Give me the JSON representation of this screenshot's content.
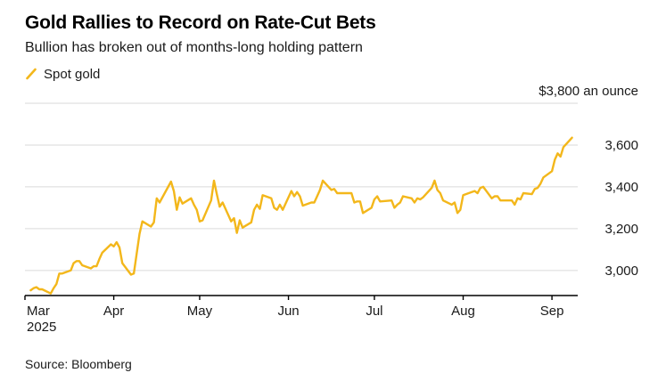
{
  "header": {
    "title": "Gold Rallies to Record on Rate-Cut Bets",
    "subtitle": "Bullion has broken out of months-long holding pattern"
  },
  "legend": {
    "label": "Spot gold",
    "color": "#F3B71B"
  },
  "source": "Source: Bloomberg",
  "chart_data": {
    "type": "line",
    "title": "Gold Rallies to Record on Rate-Cut Bets",
    "subtitle": "Bullion has broken out of months-long holding pattern",
    "unit_label": "$3,800 an ounce",
    "grid_color": "#DADADA",
    "axis_color": "#000000",
    "text_color": "#1A1A1A",
    "legend_position": "top-left",
    "y_axis": {
      "min": 2880,
      "max": 3800,
      "ticks": [
        {
          "value": 3000,
          "label": "3,000"
        },
        {
          "value": 3200,
          "label": "3,200"
        },
        {
          "value": 3400,
          "label": "3,400"
        },
        {
          "value": 3600,
          "label": "3,600"
        },
        {
          "value": 3800,
          "label": "$3,800 an ounce",
          "top": true
        }
      ]
    },
    "x_axis": {
      "start": "2025-03-01",
      "end": "2025-09-10",
      "ticks": [
        {
          "date": "2025-03-01",
          "label": "Mar",
          "sublabel": "2025"
        },
        {
          "date": "2025-04-01",
          "label": "Apr"
        },
        {
          "date": "2025-05-01",
          "label": "May"
        },
        {
          "date": "2025-06-01",
          "label": "Jun"
        },
        {
          "date": "2025-07-01",
          "label": "Jul"
        },
        {
          "date": "2025-08-01",
          "label": "Aug"
        },
        {
          "date": "2025-09-01",
          "label": "Sep"
        }
      ]
    },
    "series": [
      {
        "name": "Spot gold",
        "color": "#F3B71B",
        "points": [
          [
            "2025-03-03",
            2905
          ],
          [
            "2025-03-04",
            2915
          ],
          [
            "2025-03-05",
            2920
          ],
          [
            "2025-03-06",
            2910
          ],
          [
            "2025-03-07",
            2910
          ],
          [
            "2025-03-10",
            2890
          ],
          [
            "2025-03-11",
            2915
          ],
          [
            "2025-03-12",
            2935
          ],
          [
            "2025-03-13",
            2985
          ],
          [
            "2025-03-14",
            2985
          ],
          [
            "2025-03-17",
            3000
          ],
          [
            "2025-03-18",
            3035
          ],
          [
            "2025-03-19",
            3045
          ],
          [
            "2025-03-20",
            3045
          ],
          [
            "2025-03-21",
            3025
          ],
          [
            "2025-03-24",
            3010
          ],
          [
            "2025-03-25",
            3020
          ],
          [
            "2025-03-26",
            3020
          ],
          [
            "2025-03-27",
            3055
          ],
          [
            "2025-03-28",
            3085
          ],
          [
            "2025-03-31",
            3125
          ],
          [
            "2025-04-01",
            3115
          ],
          [
            "2025-04-02",
            3135
          ],
          [
            "2025-04-03",
            3110
          ],
          [
            "2025-04-04",
            3035
          ],
          [
            "2025-04-07",
            2980
          ],
          [
            "2025-04-08",
            2985
          ],
          [
            "2025-04-09",
            3080
          ],
          [
            "2025-04-10",
            3175
          ],
          [
            "2025-04-11",
            3235
          ],
          [
            "2025-04-14",
            3210
          ],
          [
            "2025-04-15",
            3230
          ],
          [
            "2025-04-16",
            3345
          ],
          [
            "2025-04-17",
            3325
          ],
          [
            "2025-04-21",
            3425
          ],
          [
            "2025-04-22",
            3380
          ],
          [
            "2025-04-23",
            3290
          ],
          [
            "2025-04-24",
            3350
          ],
          [
            "2025-04-25",
            3320
          ],
          [
            "2025-04-28",
            3345
          ],
          [
            "2025-04-29",
            3315
          ],
          [
            "2025-04-30",
            3290
          ],
          [
            "2025-05-01",
            3235
          ],
          [
            "2025-05-02",
            3240
          ],
          [
            "2025-05-05",
            3335
          ],
          [
            "2025-05-06",
            3430
          ],
          [
            "2025-05-07",
            3365
          ],
          [
            "2025-05-08",
            3305
          ],
          [
            "2025-05-09",
            3325
          ],
          [
            "2025-05-12",
            3235
          ],
          [
            "2025-05-13",
            3250
          ],
          [
            "2025-05-14",
            3180
          ],
          [
            "2025-05-15",
            3240
          ],
          [
            "2025-05-16",
            3205
          ],
          [
            "2025-05-19",
            3230
          ],
          [
            "2025-05-20",
            3290
          ],
          [
            "2025-05-21",
            3315
          ],
          [
            "2025-05-22",
            3295
          ],
          [
            "2025-05-23",
            3360
          ],
          [
            "2025-05-26",
            3345
          ],
          [
            "2025-05-27",
            3300
          ],
          [
            "2025-05-28",
            3290
          ],
          [
            "2025-05-29",
            3315
          ],
          [
            "2025-05-30",
            3290
          ],
          [
            "2025-06-02",
            3380
          ],
          [
            "2025-06-03",
            3355
          ],
          [
            "2025-06-04",
            3375
          ],
          [
            "2025-06-05",
            3355
          ],
          [
            "2025-06-06",
            3310
          ],
          [
            "2025-06-09",
            3325
          ],
          [
            "2025-06-10",
            3325
          ],
          [
            "2025-06-11",
            3355
          ],
          [
            "2025-06-12",
            3385
          ],
          [
            "2025-06-13",
            3430
          ],
          [
            "2025-06-16",
            3385
          ],
          [
            "2025-06-17",
            3390
          ],
          [
            "2025-06-18",
            3370
          ],
          [
            "2025-06-19",
            3370
          ],
          [
            "2025-06-20",
            3370
          ],
          [
            "2025-06-23",
            3370
          ],
          [
            "2025-06-24",
            3325
          ],
          [
            "2025-06-25",
            3330
          ],
          [
            "2025-06-26",
            3330
          ],
          [
            "2025-06-27",
            3275
          ],
          [
            "2025-06-30",
            3300
          ],
          [
            "2025-07-01",
            3340
          ],
          [
            "2025-07-02",
            3355
          ],
          [
            "2025-07-03",
            3330
          ],
          [
            "2025-07-07",
            3335
          ],
          [
            "2025-07-08",
            3300
          ],
          [
            "2025-07-09",
            3315
          ],
          [
            "2025-07-10",
            3325
          ],
          [
            "2025-07-11",
            3355
          ],
          [
            "2025-07-14",
            3345
          ],
          [
            "2025-07-15",
            3325
          ],
          [
            "2025-07-16",
            3345
          ],
          [
            "2025-07-17",
            3340
          ],
          [
            "2025-07-18",
            3350
          ],
          [
            "2025-07-21",
            3395
          ],
          [
            "2025-07-22",
            3430
          ],
          [
            "2025-07-23",
            3385
          ],
          [
            "2025-07-24",
            3370
          ],
          [
            "2025-07-25",
            3335
          ],
          [
            "2025-07-28",
            3315
          ],
          [
            "2025-07-29",
            3325
          ],
          [
            "2025-07-30",
            3275
          ],
          [
            "2025-07-31",
            3290
          ],
          [
            "2025-08-01",
            3360
          ],
          [
            "2025-08-04",
            3375
          ],
          [
            "2025-08-05",
            3380
          ],
          [
            "2025-08-06",
            3370
          ],
          [
            "2025-08-07",
            3395
          ],
          [
            "2025-08-08",
            3400
          ],
          [
            "2025-08-11",
            3345
          ],
          [
            "2025-08-12",
            3355
          ],
          [
            "2025-08-13",
            3355
          ],
          [
            "2025-08-14",
            3335
          ],
          [
            "2025-08-15",
            3335
          ],
          [
            "2025-08-18",
            3335
          ],
          [
            "2025-08-19",
            3315
          ],
          [
            "2025-08-20",
            3345
          ],
          [
            "2025-08-21",
            3340
          ],
          [
            "2025-08-22",
            3370
          ],
          [
            "2025-08-25",
            3365
          ],
          [
            "2025-08-26",
            3390
          ],
          [
            "2025-08-27",
            3395
          ],
          [
            "2025-08-28",
            3415
          ],
          [
            "2025-08-29",
            3445
          ],
          [
            "2025-09-01",
            3475
          ],
          [
            "2025-09-02",
            3530
          ],
          [
            "2025-09-03",
            3560
          ],
          [
            "2025-09-04",
            3545
          ],
          [
            "2025-09-05",
            3590
          ],
          [
            "2025-09-08",
            3635
          ]
        ]
      }
    ]
  }
}
